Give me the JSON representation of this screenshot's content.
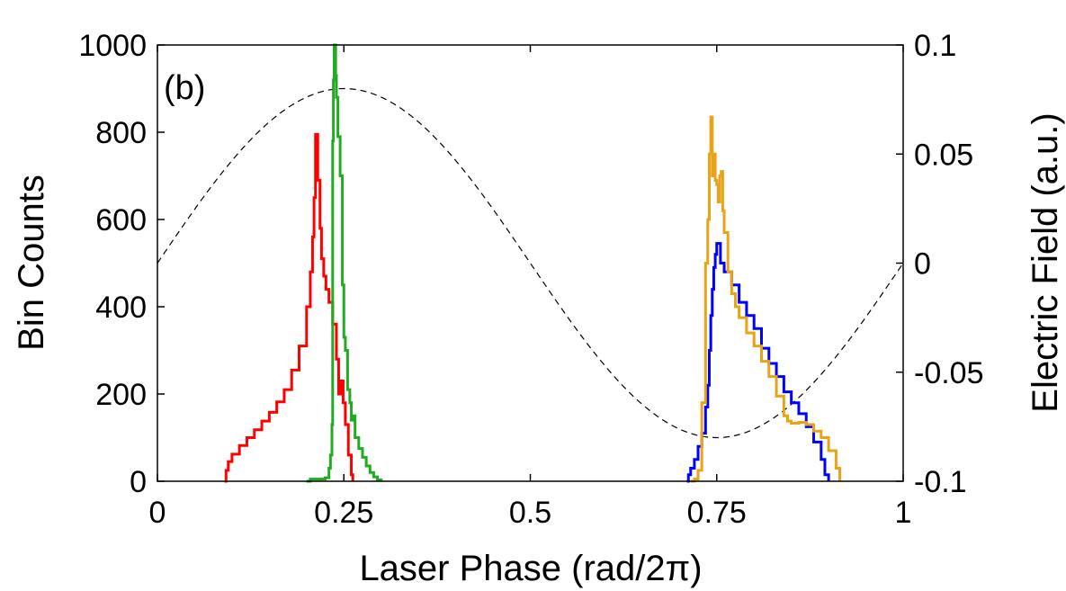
{
  "chart_data": {
    "type": "line",
    "panel_label": "(b)",
    "xlabel": "Laser Phase (rad/2π)",
    "ylabel": "Bin Counts",
    "y2label": "Electric Field (a.u.)",
    "xlim": [
      0,
      1
    ],
    "ylim": [
      0,
      1000
    ],
    "y2lim": [
      -0.1,
      0.1
    ],
    "xticks": [
      0,
      0.25,
      0.5,
      0.75,
      1
    ],
    "xtick_labels": [
      "0",
      "0.25",
      "0.5",
      "0.75",
      "1"
    ],
    "yticks": [
      0,
      200,
      400,
      600,
      800,
      1000
    ],
    "ytick_labels": [
      "0",
      "200",
      "400",
      "600",
      "800",
      "1000"
    ],
    "y2ticks": [
      -0.1,
      -0.05,
      0,
      0.05,
      0.1
    ],
    "y2tick_labels": [
      "-0.1",
      "-0.05",
      "0",
      "0.05",
      "0.1"
    ],
    "grid": false,
    "legend": "none",
    "field": {
      "axis": "right",
      "amplitude": 0.08,
      "style": "dashed",
      "color": "#000000"
    },
    "series": [
      {
        "color": "#ff0000",
        "style": "step",
        "points": [
          [
            0.09,
            0
          ],
          [
            0.092,
            25
          ],
          [
            0.095,
            45
          ],
          [
            0.1,
            62
          ],
          [
            0.11,
            82
          ],
          [
            0.12,
            100
          ],
          [
            0.13,
            118
          ],
          [
            0.14,
            138
          ],
          [
            0.15,
            158
          ],
          [
            0.16,
            182
          ],
          [
            0.17,
            210
          ],
          [
            0.18,
            255
          ],
          [
            0.19,
            310
          ],
          [
            0.2,
            400
          ],
          [
            0.205,
            480
          ],
          [
            0.208,
            560
          ],
          [
            0.21,
            650
          ],
          [
            0.212,
            795
          ],
          [
            0.215,
            690
          ],
          [
            0.218,
            580
          ],
          [
            0.22,
            510
          ],
          [
            0.223,
            470
          ],
          [
            0.226,
            440
          ],
          [
            0.23,
            410
          ],
          [
            0.235,
            360
          ],
          [
            0.24,
            280
          ],
          [
            0.243,
            200
          ],
          [
            0.246,
            230
          ],
          [
            0.249,
            180
          ],
          [
            0.252,
            130
          ],
          [
            0.256,
            60
          ],
          [
            0.26,
            15
          ],
          [
            0.262,
            0
          ]
        ]
      },
      {
        "color": "#22aa22",
        "style": "step",
        "points": [
          [
            0.2,
            0
          ],
          [
            0.205,
            5
          ],
          [
            0.225,
            8
          ],
          [
            0.228,
            8
          ],
          [
            0.23,
            30
          ],
          [
            0.232,
            60
          ],
          [
            0.234,
            130
          ],
          [
            0.235,
            780
          ],
          [
            0.236,
            920
          ],
          [
            0.237,
            1000
          ],
          [
            0.238,
            1000
          ],
          [
            0.239,
            930
          ],
          [
            0.24,
            880
          ],
          [
            0.242,
            790
          ],
          [
            0.245,
            700
          ],
          [
            0.248,
            450
          ],
          [
            0.25,
            330
          ],
          [
            0.252,
            300
          ],
          [
            0.255,
            210
          ],
          [
            0.258,
            180
          ],
          [
            0.26,
            140
          ],
          [
            0.262,
            150
          ],
          [
            0.265,
            100
          ],
          [
            0.27,
            75
          ],
          [
            0.275,
            55
          ],
          [
            0.28,
            35
          ],
          [
            0.285,
            20
          ],
          [
            0.29,
            10
          ],
          [
            0.295,
            3
          ],
          [
            0.3,
            0
          ]
        ]
      },
      {
        "color": "#0000ff",
        "style": "step",
        "points": [
          [
            0.71,
            0
          ],
          [
            0.712,
            15
          ],
          [
            0.715,
            30
          ],
          [
            0.72,
            50
          ],
          [
            0.725,
            80
          ],
          [
            0.73,
            110
          ],
          [
            0.735,
            170
          ],
          [
            0.738,
            220
          ],
          [
            0.74,
            300
          ],
          [
            0.742,
            380
          ],
          [
            0.744,
            440
          ],
          [
            0.746,
            490
          ],
          [
            0.748,
            520
          ],
          [
            0.75,
            545
          ],
          [
            0.755,
            500
          ],
          [
            0.76,
            480
          ],
          [
            0.77,
            450
          ],
          [
            0.78,
            410
          ],
          [
            0.79,
            380
          ],
          [
            0.8,
            350
          ],
          [
            0.81,
            305
          ],
          [
            0.82,
            270
          ],
          [
            0.83,
            240
          ],
          [
            0.84,
            205
          ],
          [
            0.85,
            180
          ],
          [
            0.86,
            155
          ],
          [
            0.87,
            125
          ],
          [
            0.88,
            90
          ],
          [
            0.89,
            50
          ],
          [
            0.895,
            15
          ],
          [
            0.9,
            0
          ]
        ]
      },
      {
        "color": "#e8a317",
        "style": "step",
        "points": [
          [
            0.715,
            0
          ],
          [
            0.72,
            5
          ],
          [
            0.725,
            25
          ],
          [
            0.73,
            180
          ],
          [
            0.735,
            500
          ],
          [
            0.738,
            600
          ],
          [
            0.74,
            750
          ],
          [
            0.742,
            835
          ],
          [
            0.744,
            700
          ],
          [
            0.746,
            750
          ],
          [
            0.748,
            690
          ],
          [
            0.75,
            680
          ],
          [
            0.752,
            640
          ],
          [
            0.754,
            700
          ],
          [
            0.756,
            710
          ],
          [
            0.758,
            620
          ],
          [
            0.76,
            570
          ],
          [
            0.765,
            480
          ],
          [
            0.77,
            430
          ],
          [
            0.775,
            400
          ],
          [
            0.78,
            375
          ],
          [
            0.79,
            340
          ],
          [
            0.8,
            310
          ],
          [
            0.81,
            275
          ],
          [
            0.82,
            240
          ],
          [
            0.83,
            195
          ],
          [
            0.84,
            150
          ],
          [
            0.845,
            138
          ],
          [
            0.85,
            133
          ],
          [
            0.86,
            135
          ],
          [
            0.87,
            130
          ],
          [
            0.88,
            115
          ],
          [
            0.89,
            100
          ],
          [
            0.9,
            70
          ],
          [
            0.91,
            30
          ],
          [
            0.915,
            0
          ]
        ]
      }
    ]
  }
}
